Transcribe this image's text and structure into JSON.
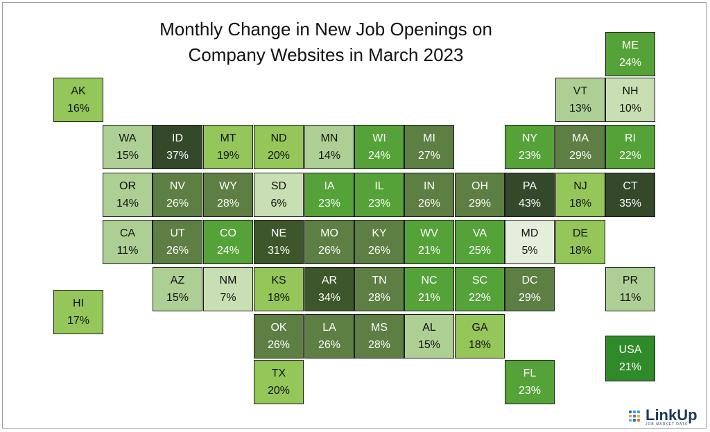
{
  "title": {
    "line1": "Monthly Change in New Job Openings on",
    "line2": "Company Websites in March 2023"
  },
  "colors": {
    "lightest": "#e3efda",
    "lighter": "#c8dfb4",
    "light": "#aecf94",
    "mid_light": "#94c65a",
    "bright": "#55a338",
    "medium": "#5e7f43",
    "dark": "#3d572a",
    "darkest": "#34492a",
    "usa_fill": "#2f8b2a",
    "text_on_light": "#111111",
    "text_on_dark": "#ffffff"
  },
  "chart_data": {
    "type": "heatmap",
    "title": "Monthly Change in New Job Openings on Company Websites in March 2023",
    "unit": "%",
    "states": [
      {
        "abbr": "ME",
        "value": 24
      },
      {
        "abbr": "AK",
        "value": 16
      },
      {
        "abbr": "VT",
        "value": 13
      },
      {
        "abbr": "NH",
        "value": 10
      },
      {
        "abbr": "WA",
        "value": 15
      },
      {
        "abbr": "ID",
        "value": 37
      },
      {
        "abbr": "MT",
        "value": 19
      },
      {
        "abbr": "ND",
        "value": 20
      },
      {
        "abbr": "MN",
        "value": 14
      },
      {
        "abbr": "WI",
        "value": 24
      },
      {
        "abbr": "MI",
        "value": 27
      },
      {
        "abbr": "NY",
        "value": 23
      },
      {
        "abbr": "MA",
        "value": 29
      },
      {
        "abbr": "RI",
        "value": 22
      },
      {
        "abbr": "OR",
        "value": 14
      },
      {
        "abbr": "NV",
        "value": 26
      },
      {
        "abbr": "WY",
        "value": 28
      },
      {
        "abbr": "SD",
        "value": 6
      },
      {
        "abbr": "IA",
        "value": 23
      },
      {
        "abbr": "IL",
        "value": 23
      },
      {
        "abbr": "IN",
        "value": 26
      },
      {
        "abbr": "OH",
        "value": 29
      },
      {
        "abbr": "PA",
        "value": 43
      },
      {
        "abbr": "NJ",
        "value": 18
      },
      {
        "abbr": "CT",
        "value": 35
      },
      {
        "abbr": "CA",
        "value": 11
      },
      {
        "abbr": "UT",
        "value": 26
      },
      {
        "abbr": "CO",
        "value": 24
      },
      {
        "abbr": "NE",
        "value": 31
      },
      {
        "abbr": "MO",
        "value": 26
      },
      {
        "abbr": "KY",
        "value": 26
      },
      {
        "abbr": "WV",
        "value": 21
      },
      {
        "abbr": "VA",
        "value": 25
      },
      {
        "abbr": "MD",
        "value": 5
      },
      {
        "abbr": "DE",
        "value": 18
      },
      {
        "abbr": "AZ",
        "value": 15
      },
      {
        "abbr": "NM",
        "value": 7
      },
      {
        "abbr": "KS",
        "value": 18
      },
      {
        "abbr": "AR",
        "value": 34
      },
      {
        "abbr": "TN",
        "value": 28
      },
      {
        "abbr": "NC",
        "value": 21
      },
      {
        "abbr": "SC",
        "value": 22
      },
      {
        "abbr": "DC",
        "value": 29
      },
      {
        "abbr": "PR",
        "value": 11
      },
      {
        "abbr": "HI",
        "value": 17
      },
      {
        "abbr": "OK",
        "value": 26
      },
      {
        "abbr": "LA",
        "value": 26
      },
      {
        "abbr": "MS",
        "value": 28
      },
      {
        "abbr": "AL",
        "value": 15
      },
      {
        "abbr": "GA",
        "value": 18
      },
      {
        "abbr": "USA",
        "value": 21
      },
      {
        "abbr": "TX",
        "value": 20
      },
      {
        "abbr": "FL",
        "value": 23
      }
    ]
  },
  "logo": {
    "name": "LinkUp",
    "tagline": "JOB MARKET DATA",
    "icon": "dot-grid-icon"
  }
}
